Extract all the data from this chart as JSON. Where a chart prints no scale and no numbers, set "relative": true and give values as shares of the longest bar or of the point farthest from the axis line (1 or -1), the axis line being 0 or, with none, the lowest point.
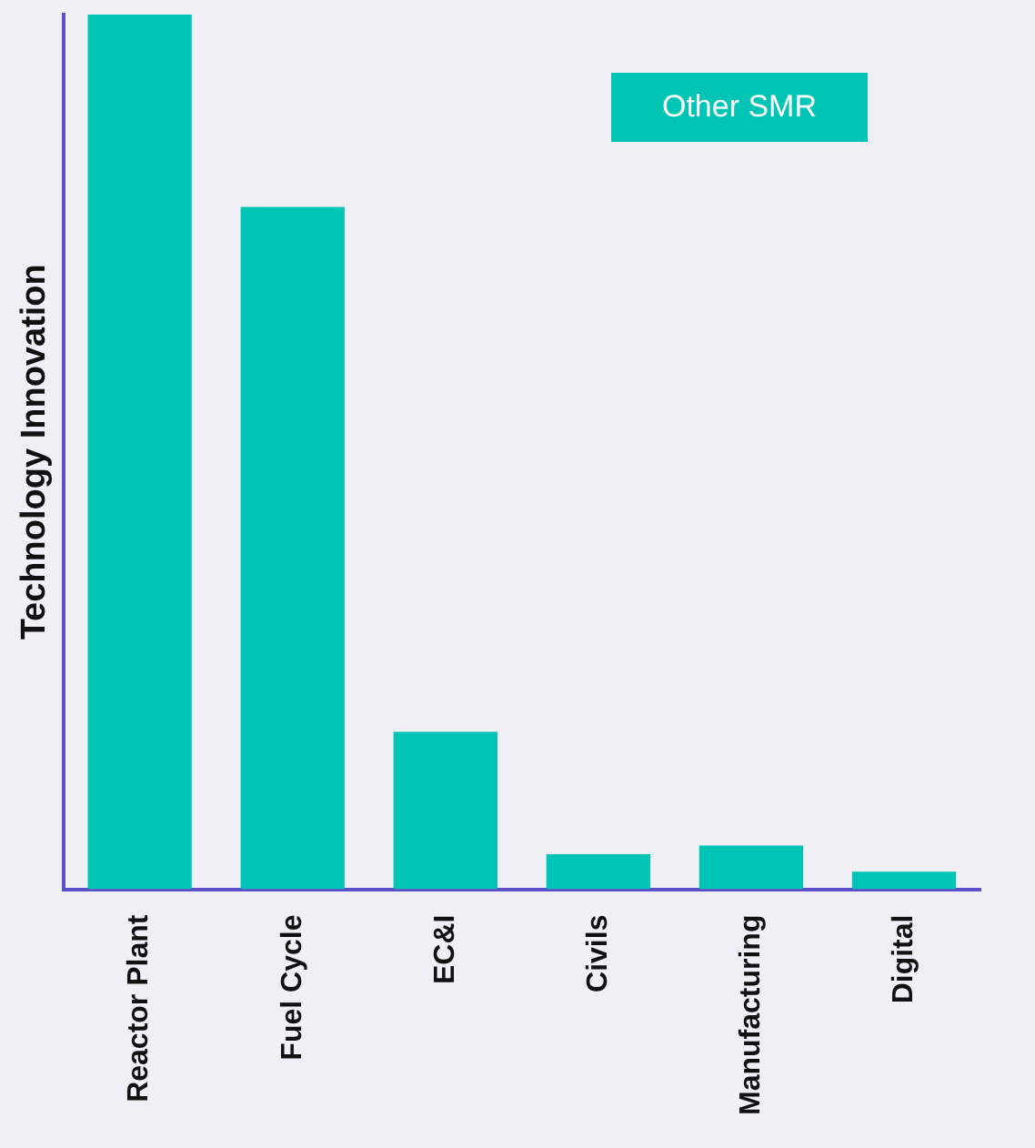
{
  "chart_data": {
    "type": "bar",
    "relative": true,
    "ylabel": "Technology Innovation",
    "categories": [
      "Reactor Plant",
      "Fuel Cycle",
      "EC&I",
      "Civils",
      "Manufacturing",
      "Digital"
    ],
    "series": [
      {
        "name": "Other SMR",
        "color": "#00c4b4",
        "values": [
          1,
          0.78,
          0.18,
          0.04,
          0.05,
          0.02
        ]
      }
    ],
    "legend": "top right",
    "grid": false
  }
}
